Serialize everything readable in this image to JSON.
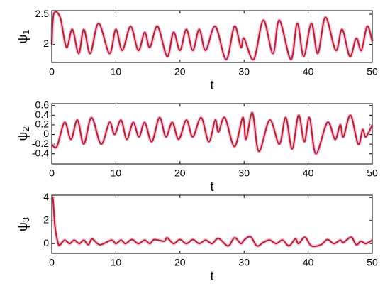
{
  "chart_data": [
    {
      "type": "line",
      "ylabel": "ψ",
      "ylabel_subscript": "1",
      "xlabel": "t",
      "xlim": [
        0,
        50
      ],
      "xticks": [
        0,
        10,
        20,
        30,
        40,
        50
      ],
      "ylim": [
        1.7,
        2.56
      ],
      "yticks": [
        2,
        2.5
      ],
      "series": [
        {
          "color": "#b3261e",
          "x": [
            0,
            0.3,
            1.3,
            2.3,
            3.2,
            4.2,
            5,
            6,
            7.3,
            9,
            10,
            11,
            12.3,
            13.5,
            14.5,
            15.3,
            16.5,
            18,
            19,
            20,
            21,
            22,
            23,
            24,
            25.5,
            27.2,
            28.5,
            29.5,
            30,
            31.5,
            33,
            34.5,
            35.5,
            37.3,
            38.3,
            39.3,
            40.5,
            41.5,
            42.7,
            44.3,
            45.3,
            46.5,
            47.5,
            48.3,
            49.2,
            50
          ],
          "values": [
            2.0,
            2.5,
            2.45,
            1.95,
            2.25,
            1.85,
            2.25,
            1.85,
            2.35,
            1.85,
            2.25,
            1.9,
            2.3,
            1.9,
            2.2,
            1.95,
            2.3,
            1.8,
            2.2,
            1.9,
            2.25,
            1.9,
            2.25,
            1.9,
            2.3,
            1.75,
            2.3,
            1.95,
            2.1,
            1.75,
            2.4,
            1.85,
            2.4,
            1.75,
            2.35,
            1.8,
            2.35,
            1.85,
            2.45,
            1.9,
            2.25,
            1.8,
            2.1,
            1.9,
            2.3,
            2.05
          ]
        }
      ]
    },
    {
      "type": "line",
      "ylabel": "ψ",
      "ylabel_subscript": "2",
      "xlabel": "t",
      "xlim": [
        0,
        50
      ],
      "xticks": [
        0,
        10,
        20,
        30,
        40,
        50
      ],
      "ylim": [
        -0.61,
        0.64
      ],
      "yticks": [
        -0.4,
        -0.2,
        0,
        0.2,
        0.4,
        0.6
      ],
      "series": [
        {
          "color": "#b3261e",
          "x": [
            0,
            0.8,
            2,
            3,
            4,
            5,
            6.2,
            7.7,
            9,
            9.8,
            10.8,
            11.7,
            12.7,
            13.6,
            14.5,
            15.6,
            16.8,
            17.8,
            18.8,
            19.8,
            21,
            22,
            23.3,
            24.5,
            25.5,
            26,
            27,
            28.5,
            29.8,
            30.3,
            31.3,
            32.3,
            34,
            35.5,
            36.5,
            37.5,
            38.5,
            39.4,
            40.2,
            41.2,
            43,
            44.2,
            45,
            45.5,
            46.6,
            47.8,
            48.5,
            49,
            50
          ],
          "values": [
            -0.2,
            -0.25,
            0.25,
            -0.1,
            0.3,
            -0.2,
            0.35,
            -0.2,
            0.25,
            0,
            0.3,
            -0.1,
            0.25,
            -0.05,
            0.25,
            -0.15,
            0.35,
            -0.05,
            0.25,
            -0.1,
            0.3,
            -0.05,
            0.35,
            -0.15,
            0.3,
            0.05,
            0.35,
            -0.25,
            0.35,
            -0.1,
            0.45,
            -0.35,
            0.3,
            -0.2,
            0.35,
            -0.3,
            0.4,
            -0.15,
            0.35,
            -0.4,
            0.25,
            -0.1,
            0.2,
            -0.05,
            0.4,
            -0.2,
            0.1,
            -0.05,
            0.2
          ]
        }
      ]
    },
    {
      "type": "line",
      "ylabel": "ψ",
      "ylabel_subscript": "3",
      "xlabel": "t",
      "xlim": [
        0,
        50
      ],
      "xticks": [
        0,
        10,
        20,
        30,
        40,
        50
      ],
      "ylim": [
        -0.85,
        4.2
      ],
      "yticks": [
        0,
        2,
        4
      ],
      "series": [
        {
          "color": "#b3261e",
          "x": [
            0,
            0.2,
            0.5,
            1,
            1.3,
            2,
            2.8,
            3.5,
            4.3,
            5,
            5.7,
            6.3,
            7.5,
            9.3,
            10,
            10.8,
            11.5,
            12.5,
            13.5,
            14.5,
            15.3,
            16,
            17.5,
            18,
            19,
            20,
            21,
            22,
            23,
            24,
            25,
            26,
            27.5,
            28.5,
            29.5,
            30,
            31,
            32,
            33,
            34,
            35,
            36,
            37,
            38,
            38.5,
            39.5,
            40.5,
            42,
            43,
            44,
            45,
            45.5,
            46.7,
            47.5,
            48.2,
            49,
            50
          ],
          "values": [
            4,
            3.8,
            1.5,
            0,
            -0.1,
            0.3,
            0,
            0.3,
            0,
            0.3,
            -0.1,
            0.4,
            -0.1,
            0.3,
            0,
            0.3,
            0,
            0.35,
            0,
            0.3,
            0,
            0.35,
            0.2,
            0.5,
            0,
            0.35,
            0,
            0.35,
            0,
            0.3,
            0,
            0.45,
            -0.2,
            0.5,
            0,
            0.3,
            0.6,
            -0.2,
            0.1,
            0.3,
            0,
            0.3,
            -0.2,
            0.4,
            0,
            0.55,
            -0.2,
            -0.1,
            0.35,
            0,
            0.3,
            0.1,
            0.55,
            -0.1,
            0.2,
            0,
            0.3
          ]
        }
      ]
    }
  ]
}
